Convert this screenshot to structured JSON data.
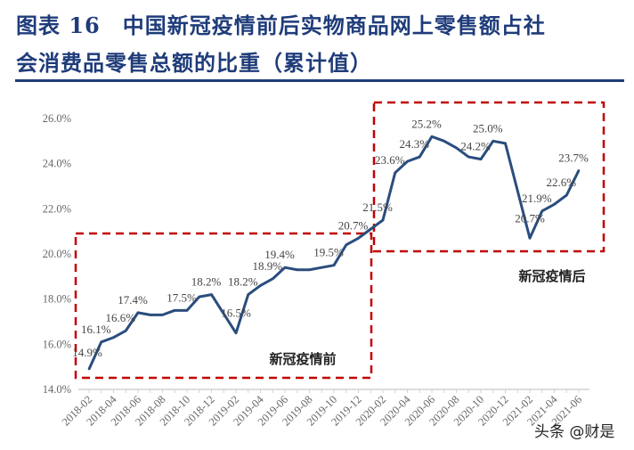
{
  "title": {
    "line1": "图表 16　中国新冠疫情前后实物商品网上零售额占社",
    "line2": "会消费品零售总额的比重（累计值）"
  },
  "watermark": "头条 @财是",
  "colors": {
    "title": "#1f3c7a",
    "line": "#2a4d7e",
    "box": "#c00000"
  },
  "chart_data": {
    "type": "line",
    "title": "中国新冠疫情前后实物商品网上零售额占社会消费品零售总额的比重（累计值）",
    "xlabel": "",
    "ylabel": "",
    "ylim": [
      14.0,
      26.0
    ],
    "y_ticks": [
      "14.0%",
      "16.0%",
      "18.0%",
      "20.0%",
      "22.0%",
      "24.0%",
      "26.0%"
    ],
    "grid": false,
    "x": [
      "2018-02",
      "2018-03",
      "2018-04",
      "2018-05",
      "2018-06",
      "2018-07",
      "2018-08",
      "2018-09",
      "2018-10",
      "2018-11",
      "2018-12",
      "2019-01",
      "2019-02",
      "2019-03",
      "2019-04",
      "2019-05",
      "2019-06",
      "2019-07",
      "2019-08",
      "2019-09",
      "2019-10",
      "2019-11",
      "2019-12",
      "2020-01",
      "2020-02",
      "2020-03",
      "2020-04",
      "2020-05",
      "2020-06",
      "2020-07",
      "2020-08",
      "2020-09",
      "2020-10",
      "2020-11",
      "2020-12",
      "2021-01",
      "2021-02",
      "2021-03",
      "2021-04",
      "2021-05",
      "2021-06"
    ],
    "x_tick_labels": [
      "2018-02",
      "2018-04",
      "2018-06",
      "2018-08",
      "2018-10",
      "2018-12",
      "2019-02",
      "2019-04",
      "2019-06",
      "2019-08",
      "2019-10",
      "2019-12",
      "2020-02",
      "2020-04",
      "2020-06",
      "2020-08",
      "2020-10",
      "2020-12",
      "2021-02",
      "2021-04",
      "2021-06"
    ],
    "values": [
      14.9,
      16.1,
      16.3,
      16.6,
      17.4,
      17.3,
      17.3,
      17.5,
      17.5,
      18.1,
      18.2,
      17.35,
      16.5,
      18.2,
      18.6,
      18.9,
      19.4,
      19.3,
      19.3,
      19.4,
      19.5,
      20.4,
      20.7,
      21.1,
      21.5,
      23.6,
      24.1,
      24.3,
      25.2,
      25.0,
      24.7,
      24.3,
      24.2,
      25.0,
      24.9,
      22.8,
      20.7,
      21.9,
      22.2,
      22.6,
      23.7
    ],
    "data_labels": [
      {
        "x": "2018-02",
        "text": "14.9%"
      },
      {
        "x": "2018-03",
        "text": "16.1%"
      },
      {
        "x": "2018-05",
        "text": "16.6%"
      },
      {
        "x": "2018-06",
        "text": "17.4%"
      },
      {
        "x": "2018-10",
        "text": "17.5%"
      },
      {
        "x": "2018-12",
        "text": "18.2%"
      },
      {
        "x": "2019-02",
        "text": "16.5%"
      },
      {
        "x": "2019-03",
        "text": "18.2%"
      },
      {
        "x": "2019-05",
        "text": "18.9%"
      },
      {
        "x": "2019-06",
        "text": "19.4%"
      },
      {
        "x": "2019-10",
        "text": "19.5%"
      },
      {
        "x": "2019-12",
        "text": "20.7%"
      },
      {
        "x": "2020-02",
        "text": "21.5%"
      },
      {
        "x": "2020-03",
        "text": "23.6%"
      },
      {
        "x": "2020-05",
        "text": "24.3%"
      },
      {
        "x": "2020-06",
        "text": "25.2%"
      },
      {
        "x": "2020-10",
        "text": "24.2%"
      },
      {
        "x": "2020-11",
        "text": "25.0%"
      },
      {
        "x": "2021-02",
        "text": "20.7%"
      },
      {
        "x": "2021-03",
        "text": "21.9%"
      },
      {
        "x": "2021-05",
        "text": "22.6%"
      },
      {
        "x": "2021-06",
        "text": "23.7%"
      }
    ],
    "annotations": [
      {
        "text": "新冠疫情前",
        "range": [
          "2018-02",
          "2019-12"
        ]
      },
      {
        "text": "新冠疫情后",
        "range": [
          "2020-02",
          "2021-06"
        ]
      }
    ]
  }
}
